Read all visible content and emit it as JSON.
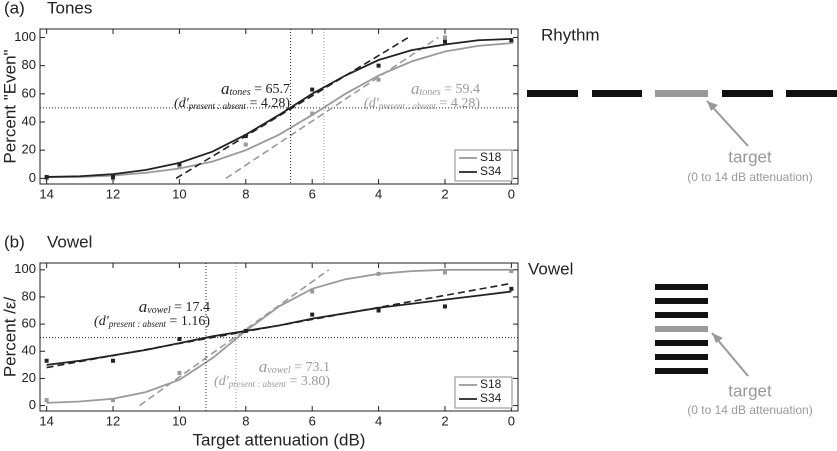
{
  "chart_data": [
    {
      "type": "line",
      "panel": "(a)",
      "title": "Tones",
      "ylabel": "Percent \"Even\"",
      "xlim": [
        14.2,
        -0.2
      ],
      "ylim": [
        -4,
        106
      ],
      "xticks": [
        14,
        12,
        10,
        8,
        6,
        4,
        2,
        0
      ],
      "yticks": [
        0,
        20,
        40,
        60,
        80,
        100
      ],
      "x": [
        14,
        12,
        10,
        8,
        6,
        4,
        2,
        0
      ],
      "fit_x": [
        14,
        13,
        12,
        11,
        10,
        9,
        8,
        7,
        6,
        5,
        4,
        3,
        2,
        1,
        0
      ],
      "threshold": 50,
      "legend": "lower right",
      "series": [
        {
          "name": "S18",
          "color": "#9a9a9a",
          "values": [
            0,
            0,
            8,
            24,
            46,
            70,
            100,
            97
          ],
          "fit": [
            1,
            1,
            2,
            4,
            7,
            12,
            20,
            31,
            45,
            60,
            73,
            83,
            90,
            94,
            96
          ],
          "tangent": {
            "x": [
              8.6,
              2.2
            ],
            "y": [
              0,
              100
            ]
          },
          "midpoint": 5.65
        },
        {
          "name": "S34",
          "color": "#222222",
          "values": [
            1,
            1,
            10,
            30,
            63,
            80,
            97,
            98
          ],
          "fit": [
            1,
            1.5,
            3,
            6,
            11,
            19,
            31,
            45,
            60,
            73,
            84,
            91,
            95,
            98,
            99
          ],
          "tangent": {
            "x": [
              10.1,
              3.1
            ],
            "y": [
              0,
              100
            ]
          },
          "midpoint": 6.65
        }
      ],
      "annotations": [
        {
          "color": "#222222",
          "a": "a",
          "a_sub": "tones",
          "a_value": " = 65.7",
          "d": "(d′",
          "d_sub": "present : absent",
          "d_value": " = 4.28)"
        },
        {
          "color": "#9a9a9a",
          "a": "a",
          "a_sub": "tones",
          "a_value": " = 59.4",
          "d": "(d′",
          "d_sub": "present : absent",
          "d_value": " = 4.28)"
        }
      ],
      "stimulus": {
        "label": "Rhythm",
        "target": "target",
        "target_note": "(0 to 14 dB attenuation)"
      }
    },
    {
      "type": "line",
      "panel": "(b)",
      "title": "Vowel",
      "ylabel": "Percent /ε/",
      "xlabel": "Target attenuation (dB)",
      "xlim": [
        14.2,
        -0.2
      ],
      "ylim": [
        -4,
        105
      ],
      "xticks": [
        14,
        12,
        10,
        8,
        6,
        4,
        2,
        0
      ],
      "yticks": [
        0,
        20,
        40,
        60,
        80,
        100
      ],
      "x": [
        14,
        12,
        10,
        8,
        6,
        4,
        2,
        0
      ],
      "fit_x": [
        14,
        13,
        12,
        11,
        10,
        9,
        8,
        7,
        6,
        5,
        4,
        3,
        2,
        1,
        0
      ],
      "threshold": 50,
      "legend": "lower right",
      "series": [
        {
          "name": "S18",
          "color": "#9a9a9a",
          "values": [
            4,
            4,
            24,
            55,
            84,
            97,
            98,
            99
          ],
          "fit": [
            2,
            3,
            5,
            10,
            19,
            35,
            55,
            73,
            86,
            93,
            97,
            99,
            100,
            100,
            100
          ],
          "tangent": {
            "x": [
              11.2,
              5.5
            ],
            "y": [
              0,
              100
            ]
          },
          "midpoint": 8.3
        },
        {
          "name": "S34",
          "color": "#222222",
          "values": [
            33,
            33,
            49,
            55,
            67,
            70,
            73,
            86
          ],
          "fit": [
            30,
            33,
            37,
            41,
            46,
            51,
            55,
            59,
            64,
            68,
            72,
            75,
            78,
            81,
            84
          ],
          "tangent": {
            "x": [
              14,
              0
            ],
            "y": [
              28,
              90
            ]
          },
          "midpoint": 9.2
        }
      ],
      "annotations": [
        {
          "color": "#222222",
          "a": "a",
          "a_sub": "vowel",
          "a_value": " = 17.4",
          "d": "(d′",
          "d_sub": "present : absent",
          "d_value": " = 1.16)"
        },
        {
          "color": "#9a9a9a",
          "a": "a",
          "a_sub": "vowel",
          "a_value": " = 73.1",
          "d": "(d′",
          "d_sub": "present : absent",
          "d_value": " = 3.80)"
        }
      ],
      "stimulus": {
        "label": "Vowel",
        "target": "target",
        "target_note": "(0 to 14 dB attenuation)"
      }
    }
  ]
}
